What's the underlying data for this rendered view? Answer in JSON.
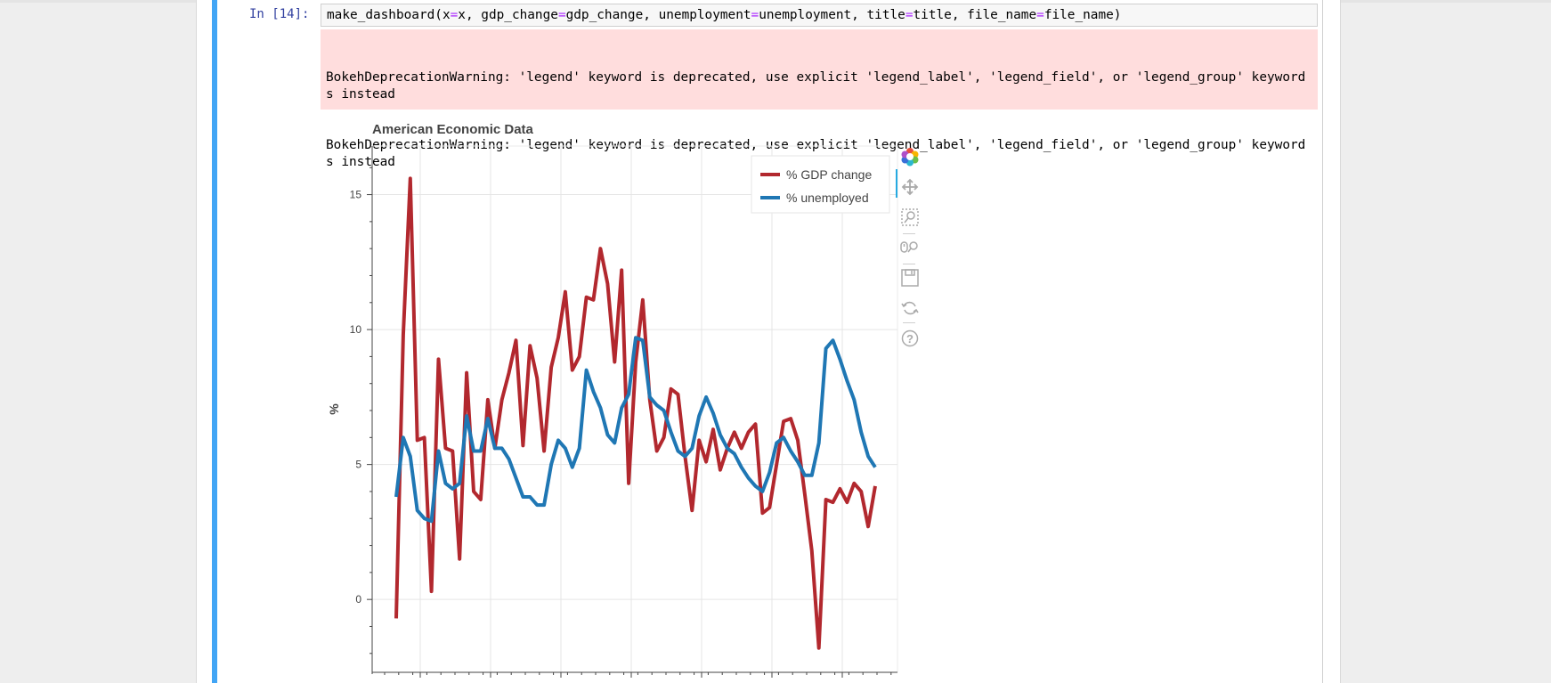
{
  "cell": {
    "prompt": "In [14]:",
    "code_parts": [
      "make_dashboard(x",
      "=",
      "x, gdp_change",
      "=",
      "gdp_change, unemployment",
      "=",
      "unemployment, title",
      "=",
      "title, file_name",
      "=",
      "file_name)"
    ],
    "stderr_lines": [
      "BokehDeprecationWarning: 'legend' keyword is deprecated, use explicit 'legend_label', 'legend_field', or 'legend_group' keyword s instead",
      "BokehDeprecationWarning: 'legend' keyword is deprecated, use explicit 'legend_label', 'legend_field', or 'legend_group' keyword s instead"
    ]
  },
  "toolbar": {
    "tools": [
      "bokeh-logo-icon",
      "pan-icon",
      "box-zoom-icon",
      "wheel-zoom-icon",
      "save-icon",
      "reset-icon",
      "help-icon"
    ]
  },
  "colors": {
    "gdp": "#b2282e",
    "unemployment": "#1f77b4",
    "warning_bg": "#ffdddd",
    "cell_bar": "#42a5f5",
    "prompt": "#303f9f"
  },
  "chart_data": {
    "type": "line",
    "title": "American Economic Data",
    "xlabel": "",
    "ylabel": "%",
    "ylim": [
      -2.7,
      16.8
    ],
    "yticks": [
      0,
      5,
      10,
      15
    ],
    "grid": true,
    "legend_position": "top-right",
    "series": [
      {
        "name": "% GDP change",
        "color": "#b2282e",
        "values": [
          -0.7,
          9.8,
          15.6,
          5.9,
          6.0,
          0.3,
          8.9,
          5.6,
          5.5,
          1.5,
          8.4,
          4.0,
          3.7,
          7.4,
          5.6,
          7.4,
          8.4,
          9.6,
          5.7,
          9.4,
          8.2,
          5.5,
          8.6,
          9.7,
          11.4,
          8.5,
          9.0,
          11.2,
          11.1,
          13.0,
          11.7,
          8.8,
          12.2,
          4.3,
          8.8,
          11.1,
          7.4,
          5.5,
          6.0,
          7.8,
          7.6,
          5.3,
          3.3,
          5.9,
          5.1,
          6.3,
          4.8,
          5.6,
          6.2,
          5.6,
          6.2,
          6.5,
          3.2,
          3.4,
          5.0,
          6.6,
          6.7,
          5.9,
          3.9,
          1.8,
          -1.8,
          3.7,
          3.6,
          4.1,
          3.6,
          4.3,
          4.0,
          2.7,
          4.2
        ]
      },
      {
        "name": "% unemployed",
        "color": "#1f77b4",
        "values": [
          3.8,
          6.0,
          5.3,
          3.3,
          3.0,
          2.9,
          5.5,
          4.3,
          4.1,
          4.3,
          6.8,
          5.5,
          5.5,
          6.7,
          5.6,
          5.6,
          5.2,
          4.5,
          3.8,
          3.8,
          3.5,
          3.5,
          5.0,
          5.9,
          5.6,
          4.9,
          5.6,
          8.5,
          7.7,
          7.1,
          6.1,
          5.8,
          7.1,
          7.6,
          9.7,
          9.6,
          7.5,
          7.2,
          7.0,
          6.2,
          5.5,
          5.3,
          5.6,
          6.8,
          7.5,
          6.9,
          6.1,
          5.6,
          5.4,
          4.9,
          4.5,
          4.2,
          4.0,
          4.7,
          5.8,
          6.0,
          5.5,
          5.1,
          4.6,
          4.6,
          5.8,
          9.3,
          9.6,
          8.9,
          8.1,
          7.4,
          6.2,
          5.3,
          4.9
        ]
      }
    ]
  }
}
